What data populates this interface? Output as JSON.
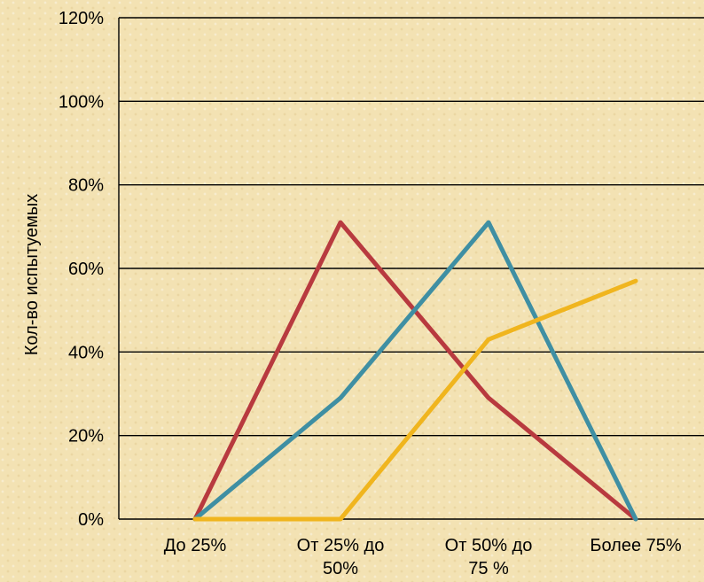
{
  "chart_data": {
    "type": "line",
    "title": "",
    "xlabel": "",
    "ylabel": "Кол-во испытуемых",
    "categories": [
      [
        "До 25%"
      ],
      [
        "От 25% до",
        "50%"
      ],
      [
        "От 50% до",
        "75 %"
      ],
      [
        "Более 75%"
      ]
    ],
    "y_ticks": [
      "0%",
      "20%",
      "40%",
      "60%",
      "80%",
      "100%",
      "120%"
    ],
    "ylim": [
      0,
      120
    ],
    "grid": true,
    "legend": "none",
    "series": [
      {
        "color": "#b83a3f",
        "values": [
          0,
          71,
          29,
          0
        ]
      },
      {
        "color": "#3f8fa3",
        "values": [
          0,
          29,
          71,
          0
        ]
      },
      {
        "color": "#f0b51e",
        "values": [
          0,
          0,
          43,
          57
        ]
      }
    ]
  }
}
